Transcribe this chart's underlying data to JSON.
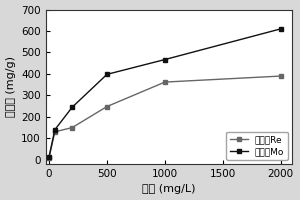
{
  "series_Re": {
    "x": [
      0,
      50,
      200,
      500,
      1000,
      2000
    ],
    "y": [
      10,
      130,
      150,
      248,
      362,
      390
    ],
    "label": "单体系Re",
    "color": "#666666",
    "marker": "s",
    "linestyle": "-"
  },
  "series_Mo": {
    "x": [
      0,
      50,
      200,
      500,
      1000,
      2000
    ],
    "y": [
      15,
      140,
      245,
      398,
      467,
      610
    ],
    "label": "单体系Mo",
    "color": "#111111",
    "marker": "s",
    "linestyle": "-"
  },
  "xlabel": "浓度 (mg/L)",
  "ylabel": "吸附量 (mg/g)",
  "xlim": [
    -30,
    2100
  ],
  "ylim": [
    -20,
    700
  ],
  "xticks": [
    0,
    500,
    1000,
    1500,
    2000
  ],
  "yticks": [
    0,
    100,
    200,
    300,
    400,
    500,
    600,
    700
  ],
  "plot_bg": "#ffffff",
  "fig_bg": "#d8d8d8",
  "axis_fontsize": 8,
  "tick_fontsize": 7.5,
  "legend_fontsize": 6.5
}
